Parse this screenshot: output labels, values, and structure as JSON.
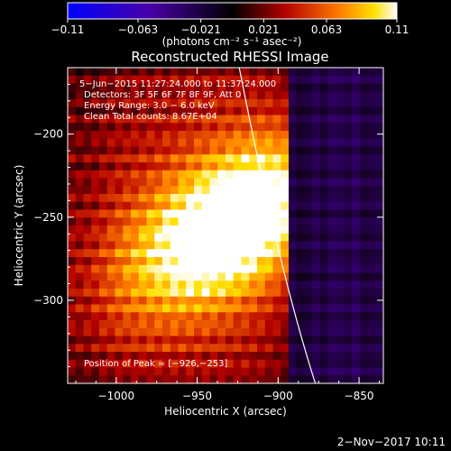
{
  "chart_data": {
    "type": "heatmap",
    "title": "Reconstructed RHESSI Image",
    "xlabel": "Heliocentric X (arcsec)",
    "ylabel": "Heliocentric Y (arcsec)",
    "xlim": [
      -1030,
      -835
    ],
    "ylim": [
      -350,
      -160
    ],
    "x_ticks": [
      -1000,
      -950,
      -900,
      -850
    ],
    "y_ticks": [
      -300,
      -250,
      -200
    ],
    "x_tick_labels": [
      "−1000",
      "−950",
      "−900",
      "−850"
    ],
    "y_tick_labels": [
      "−300",
      "−250",
      "−200"
    ],
    "colorbar": {
      "min": -0.11,
      "max": 0.11,
      "tick_values": [
        -0.11,
        -0.063,
        -0.021,
        0.021,
        0.063,
        0.11
      ],
      "tick_labels": [
        "−0.11",
        "−0.063",
        "−0.021",
        "0.021",
        "0.063",
        "0.11"
      ],
      "units_label": "(photons cm⁻² s⁻¹ asec⁻²)"
    },
    "annotations": {
      "time_range": "5−Jun−2015 11:27:24.000 to 11:37:24.000",
      "detectors": "Detectors: 3F 5F 6F 7F 8F 9F, Att 0",
      "energy": "Energy Range: 3.0 − 6.0 keV",
      "method": "Clean     Total counts: 8.67E+04",
      "peak": "Position of Peak = [−926,−253]"
    },
    "peak_position": [
      -926,
      -253
    ],
    "limb": [
      [
        -924,
        -160
      ],
      [
        -900,
        -280
      ],
      [
        -877,
        -350
      ]
    ],
    "colors": {
      "background": "#000000",
      "frame": "#ffffff",
      "limb": "#ffffff"
    }
  },
  "footer": {
    "date": "2−Nov−2017 10:11"
  }
}
